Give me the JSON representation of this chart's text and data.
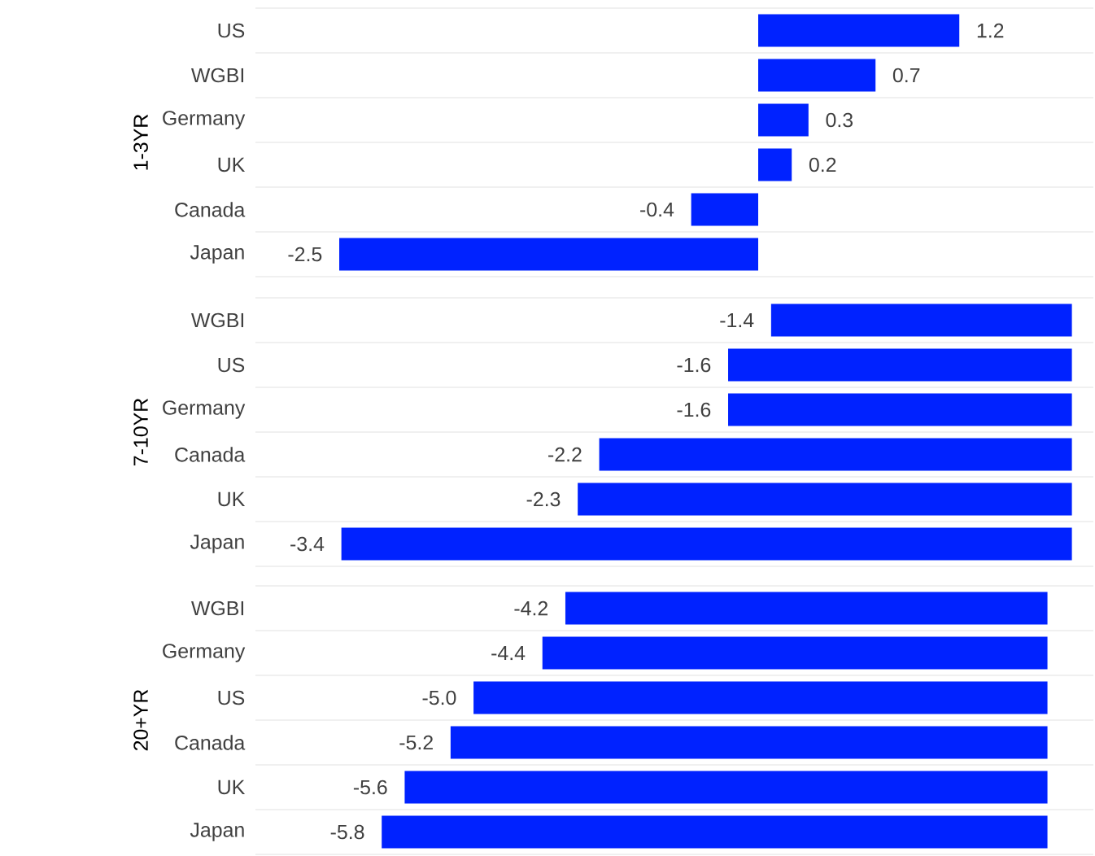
{
  "chart_data": [
    {
      "type": "bar",
      "orientation": "horizontal",
      "ylabel": "1-3YR",
      "categories": [
        "US",
        "WGBI",
        "Germany",
        "UK",
        "Canada",
        "Japan"
      ],
      "values": [
        1.2,
        0.7,
        0.3,
        0.2,
        -0.4,
        -2.5
      ],
      "value_labels": [
        "1.2",
        "0.7",
        "0.3",
        "0.2",
        "-0.4",
        "-2.5"
      ],
      "color": "#0022ff",
      "xlim": [
        -3.0,
        2.0
      ],
      "tick_labels": "y",
      "grid": "y"
    },
    {
      "type": "bar",
      "orientation": "horizontal",
      "ylabel": "7-10YR",
      "categories": [
        "WGBI",
        "US",
        "Germany",
        "Canada",
        "UK",
        "Japan"
      ],
      "values": [
        -1.4,
        -1.6,
        -1.6,
        -2.2,
        -2.3,
        -3.4
      ],
      "value_labels": [
        "-1.4",
        "-1.6",
        "-1.6",
        "-2.2",
        "-2.3",
        "-3.4"
      ],
      "color": "#0022ff",
      "xlim": [
        -3.8,
        0.1
      ],
      "tick_labels": "y",
      "grid": "y"
    },
    {
      "type": "bar",
      "orientation": "horizontal",
      "ylabel": "20+YR",
      "categories": [
        "WGBI",
        "Germany",
        "US",
        "Canada",
        "UK",
        "Japan"
      ],
      "values": [
        -4.2,
        -4.4,
        -5.0,
        -5.2,
        -5.6,
        -5.8
      ],
      "value_labels": [
        "-4.2",
        "-4.4",
        "-5.0",
        "-5.2",
        "-5.6",
        "-5.8"
      ],
      "color": "#0022ff",
      "xlim": [
        -6.9,
        0.4
      ],
      "tick_labels": "y",
      "grid": "y"
    }
  ]
}
